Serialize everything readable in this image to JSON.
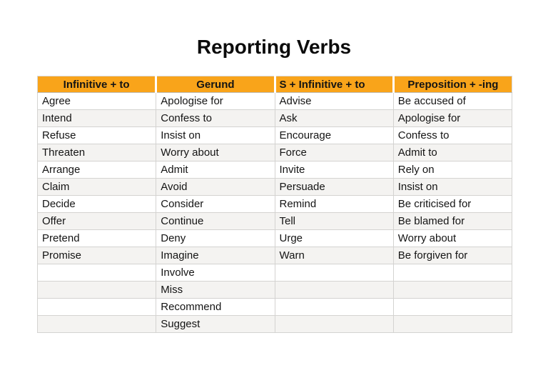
{
  "page": {
    "title": "Reporting Verbs"
  },
  "colors": {
    "header_bg": "#F9A41A",
    "stripe": "#F4F3F1",
    "grid_border": "#D4D3D1",
    "text": "#141414"
  },
  "table": {
    "headers": [
      "Infinitive + to",
      "Gerund",
      "S + Infinitive + to",
      "Preposition + -ing"
    ],
    "rows": [
      [
        "Agree",
        "Apologise for",
        "Advise",
        "Be accused of"
      ],
      [
        "Intend",
        "Confess to",
        "Ask",
        "Apologise for"
      ],
      [
        "Refuse",
        "Insist on",
        "Encourage",
        "Confess to"
      ],
      [
        "Threaten",
        "Worry about",
        "Force",
        "Admit to"
      ],
      [
        "Arrange",
        "Admit",
        "Invite",
        "Rely on"
      ],
      [
        "Claim",
        "Avoid",
        "Persuade",
        "Insist on"
      ],
      [
        "Decide",
        "Consider",
        "Remind",
        "Be criticised for"
      ],
      [
        "Offer",
        "Continue",
        "Tell",
        "Be blamed for"
      ],
      [
        "Pretend",
        "Deny",
        "Urge",
        "Worry about"
      ],
      [
        "Promise",
        "Imagine",
        "Warn",
        "Be forgiven for"
      ],
      [
        "",
        "Involve",
        "",
        ""
      ],
      [
        "",
        "Miss",
        "",
        ""
      ],
      [
        "",
        "Recommend",
        "",
        ""
      ],
      [
        "",
        "Suggest",
        "",
        ""
      ]
    ]
  }
}
